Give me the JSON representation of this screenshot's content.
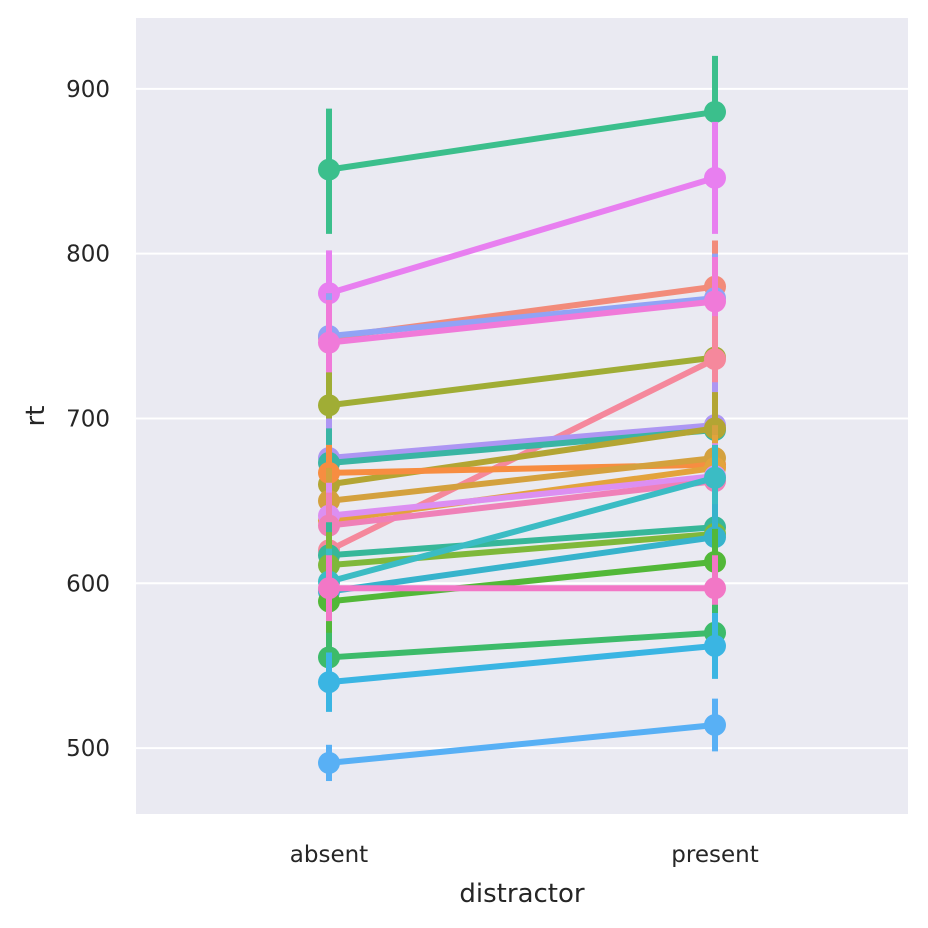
{
  "chart_data": {
    "type": "line",
    "title": "",
    "xlabel": "distractor",
    "ylabel": "rt",
    "categories": [
      "absent",
      "present"
    ],
    "ylim": [
      460,
      943
    ],
    "y_ticks": [
      500,
      600,
      700,
      800,
      900
    ],
    "grid": true,
    "legend": "none",
    "background": "#eaeaf2",
    "series": [
      {
        "values": [
          851,
          886
        ],
        "ci": [
          [
            812,
            888
          ],
          [
            853,
            920
          ]
        ],
        "color": "#3bbf8c"
      },
      {
        "values": [
          776,
          846
        ],
        "ci": [
          [
            750,
            802
          ],
          [
            812,
            880
          ]
        ],
        "color": "#e87ff0"
      },
      {
        "values": [
          749,
          780
        ],
        "ci": [
          [
            722,
            776
          ],
          [
            752,
            808
          ]
        ],
        "color": "#f28b7a"
      },
      {
        "values": [
          750,
          773
        ],
        "ci": [
          [
            724,
            776
          ],
          [
            746,
            800
          ]
        ],
        "color": "#91a3f5"
      },
      {
        "values": [
          746,
          771
        ],
        "ci": [
          [
            720,
            772
          ],
          [
            744,
            798
          ]
        ],
        "color": "#f07ad9"
      },
      {
        "values": [
          708,
          737
        ],
        "ci": [
          [
            688,
            728
          ],
          [
            716,
            758
          ]
        ],
        "color": "#a0ad35"
      },
      {
        "values": [
          620,
          736
        ],
        "ci": [
          [
            600,
            640
          ],
          [
            710,
            762
          ]
        ],
        "color": "#f5889c"
      },
      {
        "values": [
          676,
          696
        ],
        "ci": [
          [
            652,
            700
          ],
          [
            670,
            722
          ]
        ],
        "color": "#ad96f3"
      },
      {
        "values": [
          673,
          693
        ],
        "ci": [
          [
            652,
            694
          ],
          [
            672,
            714
          ]
        ],
        "color": "#3ab5a4"
      },
      {
        "values": [
          660,
          694
        ],
        "ci": [
          [
            640,
            680
          ],
          [
            672,
            716
          ]
        ],
        "color": "#b3a533"
      },
      {
        "values": [
          667,
          672
        ],
        "ci": [
          [
            650,
            684
          ],
          [
            655,
            690
          ]
        ],
        "color": "#f78d41"
      },
      {
        "values": [
          650,
          676
        ],
        "ci": [
          [
            630,
            670
          ],
          [
            656,
            696
          ]
        ],
        "color": "#d4a13e"
      },
      {
        "values": [
          638,
          670
        ],
        "ci": [
          [
            618,
            658
          ],
          [
            650,
            690
          ]
        ],
        "color": "#e3a33c"
      },
      {
        "values": [
          641,
          665
        ],
        "ci": [
          [
            621,
            661
          ],
          [
            645,
            685
          ]
        ],
        "color": "#dc8ff2"
      },
      {
        "values": [
          635,
          662
        ],
        "ci": [
          [
            615,
            655
          ],
          [
            642,
            682
          ]
        ],
        "color": "#ef80b8"
      },
      {
        "values": [
          617,
          634
        ],
        "ci": [
          [
            597,
            637
          ],
          [
            614,
            654
          ]
        ],
        "color": "#37b799"
      },
      {
        "values": [
          611,
          630
        ],
        "ci": [
          [
            591,
            631
          ],
          [
            610,
            650
          ]
        ],
        "color": "#7fb83a"
      },
      {
        "values": [
          601,
          664
        ],
        "ci": [
          [
            581,
            621
          ],
          [
            644,
            684
          ]
        ],
        "color": "#3bbcc4"
      },
      {
        "values": [
          595,
          628
        ],
        "ci": [
          [
            575,
            615
          ],
          [
            608,
            648
          ]
        ],
        "color": "#37b3cc"
      },
      {
        "values": [
          589,
          613
        ],
        "ci": [
          [
            569,
            609
          ],
          [
            593,
            633
          ]
        ],
        "color": "#52b838"
      },
      {
        "values": [
          597,
          597
        ],
        "ci": [
          [
            577,
            617
          ],
          [
            577,
            617
          ]
        ],
        "color": "#f277c6"
      },
      {
        "values": [
          555,
          570
        ],
        "ci": [
          [
            540,
            570
          ],
          [
            553,
            587
          ]
        ],
        "color": "#3dbb6a"
      },
      {
        "values": [
          540,
          562
        ],
        "ci": [
          [
            522,
            558
          ],
          [
            542,
            582
          ]
        ],
        "color": "#3ab5e3"
      },
      {
        "values": [
          491,
          514
        ],
        "ci": [
          [
            480,
            502
          ],
          [
            498,
            530
          ]
        ],
        "color": "#58b0f5"
      }
    ]
  }
}
